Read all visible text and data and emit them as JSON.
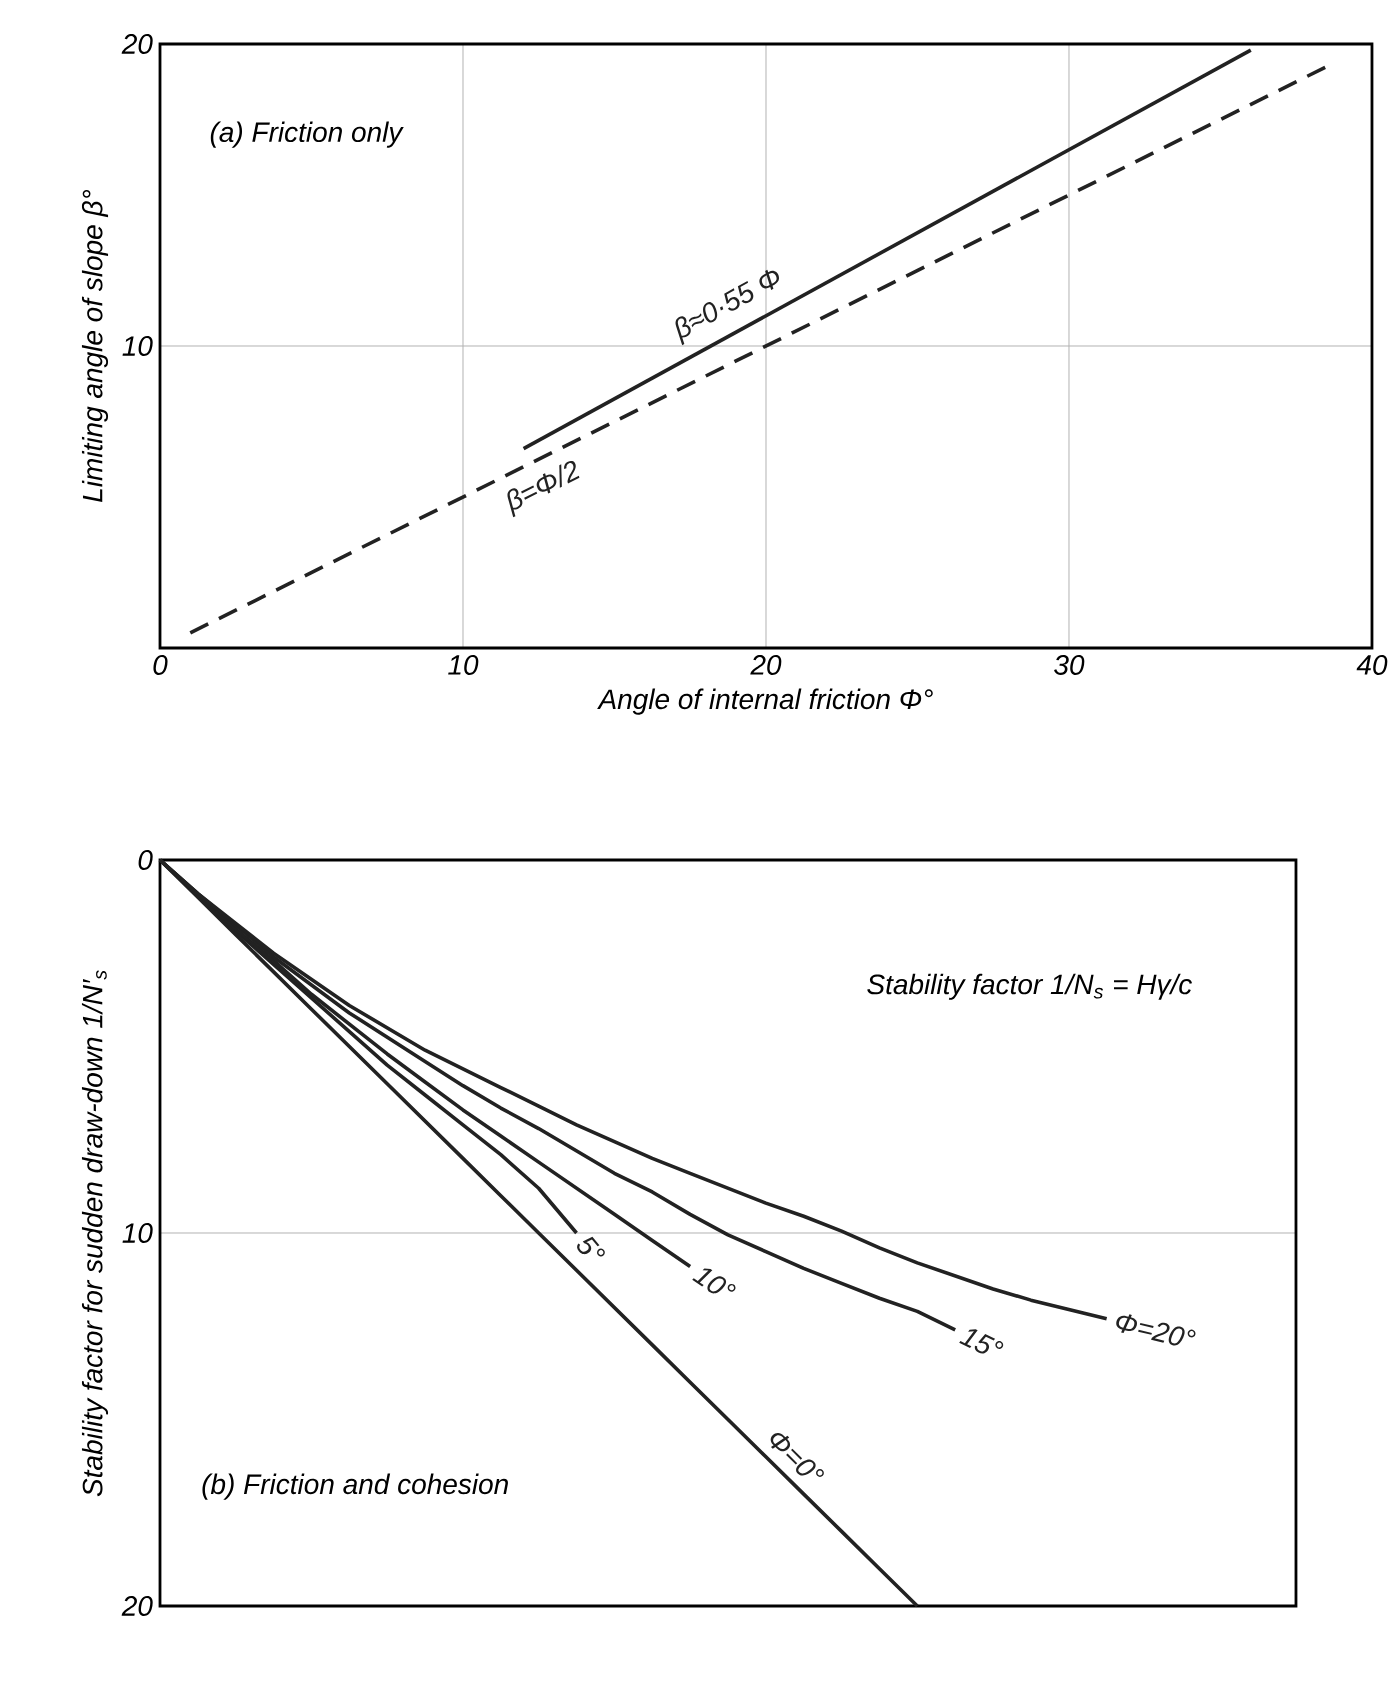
{
  "chart_data": [
    {
      "type": "line",
      "xlabel": "Angle of internal friction Φ°",
      "ylabel": "Limiting angle of slope β°",
      "annotations": [
        "(a) Friction only"
      ],
      "series": [
        {
          "name": "β≈0·55 Φ",
          "color": "#222222",
          "line_style": "solid",
          "x": [
            12,
            36
          ],
          "values": [
            6.6,
            19.8
          ]
        },
        {
          "name": "β=Φ/2",
          "color": "#222222",
          "line_style": "dashed",
          "x": [
            1,
            38.5
          ],
          "values": [
            0.5,
            19.25
          ]
        }
      ],
      "xlim": [
        0,
        40
      ],
      "ylim": [
        0,
        20
      ],
      "xticks": [
        0,
        10,
        20,
        30,
        40
      ],
      "yticks": [
        {
          "value": 0,
          "label": null
        },
        10,
        20
      ],
      "grid": true
    },
    {
      "type": "line",
      "ylabel": "Stability factor for sudden draw-down 1/N′$_{s}$",
      "annotations": [
        "Stability factor 1/N$_{s}$ = Hγ/c",
        "(b) Friction and cohesion"
      ],
      "series": [
        {
          "name": "Φ=0°",
          "color": "#222222",
          "line_style": "solid",
          "values": [
            0,
            1,
            2,
            3,
            4,
            5,
            6,
            7,
            8,
            9,
            10,
            11,
            12,
            13,
            14,
            15,
            16,
            17,
            18,
            19,
            20,
            null,
            null,
            null,
            null,
            null,
            null,
            null,
            null,
            null,
            null
          ]
        },
        {
          "name": "5°",
          "color": "#222222",
          "line_style": "solid",
          "values": [
            0,
            0.95,
            1.9,
            2.8,
            3.7,
            4.6,
            5.5,
            6.3,
            7.1,
            7.9,
            8.8,
            10.0,
            null,
            null,
            null,
            null,
            null,
            null,
            null,
            null,
            null,
            null,
            null,
            null,
            null,
            null,
            null,
            null,
            null,
            null,
            null
          ]
        },
        {
          "name": "10°",
          "color": "#222222",
          "line_style": "solid",
          "values": [
            0,
            0.93,
            1.85,
            2.7,
            3.6,
            4.4,
            5.2,
            5.95,
            6.7,
            7.4,
            8.1,
            8.8,
            9.5,
            10.2,
            10.9,
            null,
            null,
            null,
            null,
            null,
            null,
            null,
            null,
            null,
            null,
            null,
            null,
            null,
            null,
            null,
            null
          ]
        },
        {
          "name": "15°",
          "color": "#222222",
          "line_style": "solid",
          "values": [
            0,
            0.9,
            1.75,
            2.6,
            3.35,
            4.1,
            4.75,
            5.4,
            6.05,
            6.65,
            7.2,
            7.8,
            8.4,
            8.9,
            9.5,
            10.05,
            10.5,
            10.95,
            11.35,
            11.75,
            12.1,
            12.6,
            null,
            null,
            null,
            null,
            null,
            null,
            null,
            null,
            null
          ]
        },
        {
          "name": "Φ=20°",
          "color": "#222222",
          "line_style": "solid",
          "values": [
            0,
            0.9,
            1.7,
            2.5,
            3.2,
            3.9,
            4.5,
            5.1,
            5.6,
            6.1,
            6.6,
            7.1,
            7.55,
            8.0,
            8.4,
            8.8,
            9.2,
            9.55,
            9.95,
            10.4,
            10.8,
            11.15,
            11.5,
            11.8,
            12.05,
            12.3,
            null,
            null,
            null,
            null,
            null
          ]
        }
      ],
      "categories": [
        null,
        null,
        null,
        null,
        null,
        null,
        null,
        null,
        null,
        null,
        null,
        null,
        null,
        null,
        null,
        null,
        null,
        null,
        null,
        null,
        null,
        null,
        null,
        null,
        null,
        null,
        null,
        null,
        null,
        null,
        null
      ],
      "ylim": [
        20,
        0
      ],
      "yticks": [
        0,
        10,
        20
      ],
      "tick_labels": "y",
      "grid": "y"
    }
  ]
}
